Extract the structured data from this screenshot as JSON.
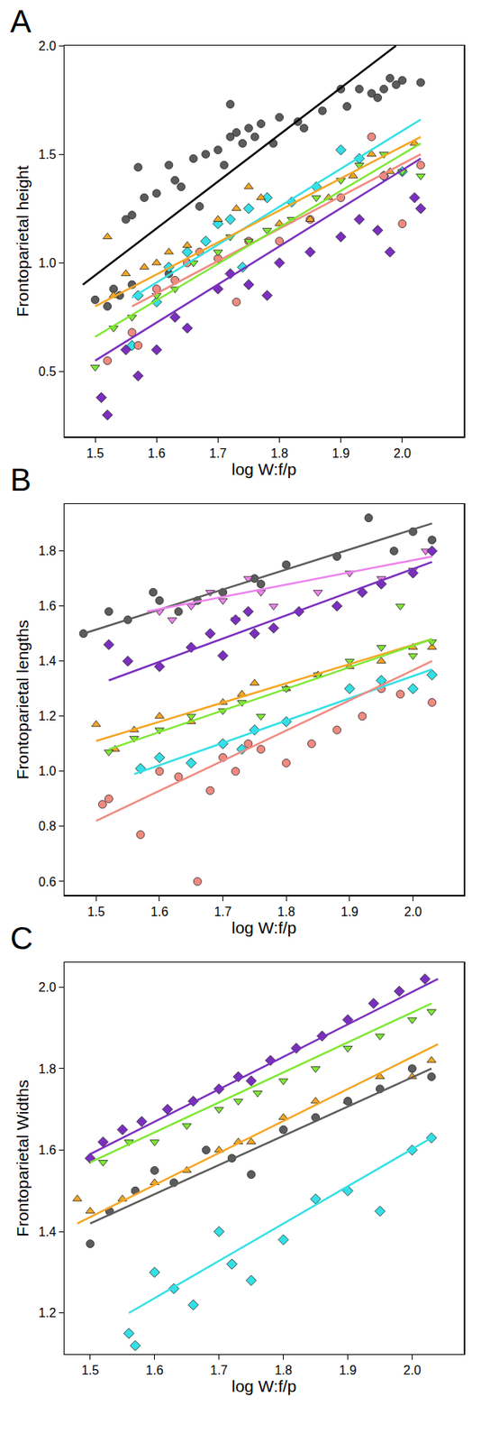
{
  "chart_data": [
    {
      "type": "scatter",
      "panel": "A",
      "x_label": "log W:f/p",
      "y_label": "Frontoparietal height",
      "xlim": [
        1.45,
        2.1
      ],
      "ylim": [
        0.2,
        2.0
      ],
      "xticks": [
        1.5,
        1.6,
        1.7,
        1.8,
        1.9,
        {
          "value": 2.0,
          "label": "2.0"
        }
      ],
      "yticks": [
        0.5,
        {
          "value": 1.0,
          "label": "1.0"
        },
        1.5,
        {
          "value": 2.0,
          "label": "2.0"
        }
      ],
      "series": [
        {
          "type": "scatter",
          "color": "#5c5c5c",
          "marker": "circle",
          "x": [
            1.5,
            1.52,
            1.53,
            1.54,
            1.55,
            1.56,
            1.57,
            1.58,
            1.6,
            1.62,
            1.63,
            1.64,
            1.66,
            1.67,
            1.68,
            1.7,
            1.71,
            1.72,
            1.72,
            1.73,
            1.74,
            1.75,
            1.76,
            1.77,
            1.79,
            1.8,
            1.83,
            1.84,
            1.87,
            1.9,
            1.91,
            1.93,
            1.95,
            1.96,
            1.97,
            1.98,
            1.99,
            2.0,
            2.03,
            1.56,
            1.62
          ],
          "values": [
            0.83,
            0.8,
            0.88,
            0.85,
            1.2,
            1.22,
            1.44,
            1.3,
            1.32,
            1.45,
            1.38,
            1.35,
            1.48,
            1.26,
            1.5,
            1.52,
            1.45,
            1.73,
            1.58,
            1.6,
            1.55,
            1.62,
            1.58,
            1.64,
            1.55,
            1.67,
            1.65,
            1.62,
            1.7,
            1.8,
            1.72,
            1.8,
            1.78,
            1.76,
            1.8,
            1.85,
            1.82,
            1.84,
            1.83,
            0.9,
            0.95
          ]
        },
        {
          "type": "scatter",
          "color": "#33e0e6",
          "marker": "diamond",
          "x": [
            1.57,
            1.6,
            1.62,
            1.65,
            1.68,
            1.7,
            1.72,
            1.75,
            1.78,
            1.82,
            1.86,
            1.9,
            1.93,
            1.97,
            2.0,
            1.74,
            1.56
          ],
          "values": [
            0.85,
            0.82,
            0.98,
            1.05,
            1.1,
            1.18,
            1.2,
            1.25,
            1.3,
            1.28,
            1.35,
            1.52,
            1.48,
            1.4,
            1.42,
            0.98,
            0.62
          ]
        },
        {
          "type": "scatter",
          "color": "#f08a80",
          "marker": "circle",
          "x": [
            1.52,
            1.56,
            1.57,
            1.6,
            1.63,
            1.65,
            1.67,
            1.7,
            1.73,
            1.75,
            1.8,
            1.85,
            1.9,
            1.95,
            1.97,
            2.0,
            2.03
          ],
          "values": [
            0.55,
            0.68,
            0.62,
            0.88,
            0.92,
            1.0,
            1.05,
            1.02,
            0.82,
            1.1,
            1.1,
            1.2,
            1.3,
            1.58,
            1.4,
            1.18,
            1.45
          ]
        },
        {
          "type": "scatter",
          "color": "#7ee832",
          "marker": "triangle-down",
          "x": [
            1.5,
            1.53,
            1.56,
            1.6,
            1.63,
            1.66,
            1.7,
            1.72,
            1.75,
            1.78,
            1.82,
            1.86,
            1.9,
            1.93,
            1.97,
            2.0,
            2.03
          ],
          "values": [
            0.52,
            0.7,
            0.75,
            0.85,
            0.88,
            1.0,
            1.05,
            1.12,
            1.1,
            1.15,
            1.2,
            1.3,
            1.38,
            1.45,
            1.5,
            1.42,
            1.4
          ]
        },
        {
          "type": "scatter",
          "color": "#f5a623",
          "marker": "triangle-up",
          "x": [
            1.52,
            1.53,
            1.55,
            1.58,
            1.6,
            1.62,
            1.65,
            1.7,
            1.73,
            1.75,
            1.77,
            1.8,
            1.85,
            1.88,
            1.92,
            1.95,
            1.98,
            2.02
          ],
          "values": [
            1.12,
            0.85,
            0.95,
            0.98,
            1.0,
            1.05,
            1.08,
            1.2,
            1.25,
            1.35,
            1.3,
            1.18,
            1.2,
            1.3,
            1.4,
            1.5,
            1.42,
            1.55
          ]
        },
        {
          "type": "scatter",
          "color": "#7b2fbf",
          "marker": "diamond",
          "x": [
            1.51,
            1.52,
            1.55,
            1.57,
            1.6,
            1.63,
            1.65,
            1.7,
            1.72,
            1.75,
            1.78,
            1.8,
            1.85,
            1.9,
            1.93,
            1.96,
            1.98,
            2.02,
            2.03
          ],
          "values": [
            0.38,
            0.3,
            0.6,
            0.48,
            0.6,
            0.75,
            0.7,
            0.88,
            0.95,
            0.9,
            0.85,
            1.0,
            1.05,
            1.12,
            1.2,
            1.15,
            1.05,
            1.3,
            1.25
          ]
        },
        {
          "type": "line",
          "color": "#000000",
          "x": [
            1.48,
            1.99
          ],
          "values": [
            0.9,
            2.0
          ]
        },
        {
          "type": "line",
          "color": "#33e0e6",
          "x": [
            1.56,
            2.03
          ],
          "values": [
            0.84,
            1.66
          ]
        },
        {
          "type": "line",
          "color": "#f08a80",
          "x": [
            1.56,
            2.03
          ],
          "values": [
            0.8,
            1.5
          ]
        },
        {
          "type": "line",
          "color": "#7ee832",
          "x": [
            1.5,
            2.03
          ],
          "values": [
            0.66,
            1.55
          ]
        },
        {
          "type": "line",
          "color": "#f5a623",
          "x": [
            1.5,
            2.03
          ],
          "values": [
            0.8,
            1.58
          ]
        },
        {
          "type": "line",
          "color": "#7b2fbf",
          "x": [
            1.5,
            2.03
          ],
          "values": [
            0.55,
            1.48
          ]
        }
      ]
    },
    {
      "type": "scatter",
      "panel": "B",
      "x_label": "log W:f/p",
      "y_label": "Frontoparietal lengths",
      "xlim": [
        1.45,
        2.08
      ],
      "ylim": [
        0.55,
        1.97
      ],
      "xticks": [
        1.5,
        1.6,
        1.7,
        1.8,
        1.9,
        {
          "value": 2.0,
          "label": "2.0"
        }
      ],
      "yticks": [
        0.6,
        0.8,
        {
          "value": 1.0,
          "label": "1.0"
        },
        1.2,
        1.4,
        1.6,
        1.8
      ],
      "series": [
        {
          "type": "scatter",
          "color": "#5c5c5c",
          "marker": "circle",
          "x": [
            1.48,
            1.52,
            1.55,
            1.59,
            1.6,
            1.63,
            1.66,
            1.7,
            1.75,
            1.8,
            1.88,
            1.93,
            1.97,
            2.0,
            2.03,
            1.76
          ],
          "values": [
            1.5,
            1.58,
            1.55,
            1.65,
            1.62,
            1.58,
            1.62,
            1.65,
            1.7,
            1.75,
            1.78,
            1.92,
            1.8,
            1.87,
            1.84,
            1.68
          ]
        },
        {
          "type": "scatter",
          "color": "#ee82ee",
          "marker": "triangle-down",
          "x": [
            1.6,
            1.62,
            1.65,
            1.68,
            1.7,
            1.72,
            1.74,
            1.76,
            1.78,
            1.85,
            1.9,
            1.95,
            2.0,
            2.02
          ],
          "values": [
            1.58,
            1.55,
            1.6,
            1.65,
            1.62,
            1.55,
            1.7,
            1.65,
            1.6,
            1.65,
            1.72,
            1.7,
            1.73,
            1.8
          ]
        },
        {
          "type": "scatter",
          "color": "#7b2fbf",
          "marker": "diamond",
          "x": [
            1.52,
            1.55,
            1.6,
            1.65,
            1.68,
            1.7,
            1.72,
            1.75,
            1.78,
            1.82,
            1.88,
            1.92,
            1.95,
            2.0,
            2.03,
            1.74
          ],
          "values": [
            1.46,
            1.4,
            1.38,
            1.45,
            1.5,
            1.42,
            1.55,
            1.5,
            1.52,
            1.58,
            1.6,
            1.65,
            1.68,
            1.72,
            1.8,
            1.58
          ]
        },
        {
          "type": "scatter",
          "color": "#f5a623",
          "marker": "triangle-up",
          "x": [
            1.5,
            1.53,
            1.56,
            1.6,
            1.65,
            1.7,
            1.73,
            1.75,
            1.8,
            1.85,
            1.9,
            1.95,
            2.0,
            2.03
          ],
          "values": [
            1.17,
            1.08,
            1.15,
            1.2,
            1.18,
            1.25,
            1.28,
            1.32,
            1.3,
            1.35,
            1.38,
            1.4,
            1.45,
            1.45
          ]
        },
        {
          "type": "scatter",
          "color": "#7ee832",
          "marker": "triangle-down",
          "x": [
            1.52,
            1.56,
            1.6,
            1.65,
            1.7,
            1.73,
            1.76,
            1.8,
            1.85,
            1.9,
            1.95,
            1.98,
            2.0,
            2.03
          ],
          "values": [
            1.07,
            1.12,
            1.15,
            1.2,
            1.22,
            1.25,
            1.2,
            1.3,
            1.35,
            1.4,
            1.45,
            1.6,
            1.42,
            1.47
          ]
        },
        {
          "type": "scatter",
          "color": "#33e0e6",
          "marker": "diamond",
          "x": [
            1.57,
            1.6,
            1.65,
            1.7,
            1.73,
            1.75,
            1.8,
            1.9,
            1.95,
            2.0,
            2.03
          ],
          "values": [
            1.01,
            1.05,
            1.03,
            1.1,
            1.08,
            1.15,
            1.18,
            1.3,
            1.33,
            1.3,
            1.35
          ]
        },
        {
          "type": "scatter",
          "color": "#f08a80",
          "marker": "circle",
          "x": [
            1.51,
            1.52,
            1.57,
            1.6,
            1.63,
            1.66,
            1.68,
            1.7,
            1.72,
            1.74,
            1.76,
            1.8,
            1.84,
            1.88,
            1.92,
            1.95,
            1.98,
            2.03
          ],
          "values": [
            0.88,
            0.9,
            0.77,
            1.0,
            0.98,
            0.6,
            0.93,
            1.05,
            1.0,
            1.1,
            1.08,
            1.03,
            1.1,
            1.15,
            1.2,
            1.3,
            1.28,
            1.25
          ]
        },
        {
          "type": "line",
          "color": "#5c5c5c",
          "x": [
            1.48,
            2.03
          ],
          "values": [
            1.5,
            1.9
          ]
        },
        {
          "type": "line",
          "color": "#ee82ee",
          "x": [
            1.58,
            2.03
          ],
          "values": [
            1.58,
            1.78
          ]
        },
        {
          "type": "line",
          "color": "#7b2fbf",
          "x": [
            1.52,
            2.03
          ],
          "values": [
            1.33,
            1.76
          ]
        },
        {
          "type": "line",
          "color": "#f5a623",
          "x": [
            1.5,
            2.03
          ],
          "values": [
            1.11,
            1.48
          ]
        },
        {
          "type": "line",
          "color": "#7ee832",
          "x": [
            1.52,
            2.03
          ],
          "values": [
            1.08,
            1.48
          ]
        },
        {
          "type": "line",
          "color": "#33e0e6",
          "x": [
            1.56,
            2.03
          ],
          "values": [
            0.99,
            1.37
          ]
        },
        {
          "type": "line",
          "color": "#f08a80",
          "x": [
            1.5,
            2.03
          ],
          "values": [
            0.82,
            1.4
          ]
        }
      ]
    },
    {
      "type": "scatter",
      "panel": "C",
      "x_label": "log W:f/p",
      "y_label": "Frontoparietal Widths",
      "xlim": [
        1.46,
        2.08
      ],
      "ylim": [
        1.1,
        2.06
      ],
      "xticks": [
        1.5,
        1.6,
        1.7,
        1.8,
        1.9,
        {
          "value": 2.0,
          "label": "2.0"
        }
      ],
      "yticks": [
        1.2,
        1.4,
        1.6,
        1.8,
        {
          "value": 2.0,
          "label": "2.0"
        }
      ],
      "series": [
        {
          "type": "scatter",
          "color": "#7b2fbf",
          "marker": "diamond",
          "x": [
            1.5,
            1.52,
            1.55,
            1.58,
            1.62,
            1.66,
            1.7,
            1.73,
            1.75,
            1.78,
            1.82,
            1.86,
            1.9,
            1.94,
            1.98,
            2.02
          ],
          "values": [
            1.58,
            1.62,
            1.65,
            1.67,
            1.7,
            1.72,
            1.75,
            1.78,
            1.77,
            1.82,
            1.85,
            1.88,
            1.92,
            1.96,
            1.99,
            2.02
          ]
        },
        {
          "type": "scatter",
          "color": "#7ee832",
          "marker": "triangle-down",
          "x": [
            1.52,
            1.56,
            1.6,
            1.65,
            1.7,
            1.73,
            1.76,
            1.8,
            1.85,
            1.9,
            1.95,
            2.0,
            2.03
          ],
          "values": [
            1.57,
            1.62,
            1.62,
            1.66,
            1.7,
            1.72,
            1.74,
            1.77,
            1.8,
            1.85,
            1.88,
            1.92,
            1.94
          ]
        },
        {
          "type": "scatter",
          "color": "#f5a623",
          "marker": "triangle-up",
          "x": [
            1.48,
            1.5,
            1.55,
            1.6,
            1.65,
            1.7,
            1.73,
            1.75,
            1.8,
            1.85,
            1.9,
            1.95,
            2.0,
            2.03
          ],
          "values": [
            1.48,
            1.45,
            1.48,
            1.52,
            1.55,
            1.6,
            1.62,
            1.62,
            1.68,
            1.72,
            1.72,
            1.78,
            1.78,
            1.82
          ]
        },
        {
          "type": "scatter",
          "color": "#5c5c5c",
          "marker": "circle",
          "x": [
            1.5,
            1.53,
            1.57,
            1.6,
            1.63,
            1.68,
            1.72,
            1.75,
            1.8,
            1.85,
            1.9,
            1.95,
            2.0,
            2.03
          ],
          "values": [
            1.37,
            1.45,
            1.5,
            1.55,
            1.52,
            1.6,
            1.58,
            1.54,
            1.65,
            1.68,
            1.72,
            1.75,
            1.8,
            1.78
          ]
        },
        {
          "type": "scatter",
          "color": "#33e0e6",
          "marker": "diamond",
          "x": [
            1.56,
            1.57,
            1.6,
            1.63,
            1.66,
            1.7,
            1.72,
            1.75,
            1.8,
            1.85,
            1.9,
            1.95,
            2.0,
            2.03
          ],
          "values": [
            1.15,
            1.12,
            1.3,
            1.26,
            1.22,
            1.4,
            1.32,
            1.28,
            1.38,
            1.48,
            1.5,
            1.45,
            1.6,
            1.63
          ]
        },
        {
          "type": "line",
          "color": "#7b2fbf",
          "x": [
            1.5,
            2.04
          ],
          "values": [
            1.59,
            2.02
          ]
        },
        {
          "type": "line",
          "color": "#7ee832",
          "x": [
            1.5,
            2.03
          ],
          "values": [
            1.57,
            1.96
          ]
        },
        {
          "type": "line",
          "color": "#f5a623",
          "x": [
            1.48,
            2.04
          ],
          "values": [
            1.42,
            1.86
          ]
        },
        {
          "type": "line",
          "color": "#5c5c5c",
          "x": [
            1.5,
            2.03
          ],
          "values": [
            1.42,
            1.8
          ]
        },
        {
          "type": "line",
          "color": "#33e0e6",
          "x": [
            1.56,
            2.03
          ],
          "values": [
            1.2,
            1.63
          ]
        }
      ]
    }
  ]
}
